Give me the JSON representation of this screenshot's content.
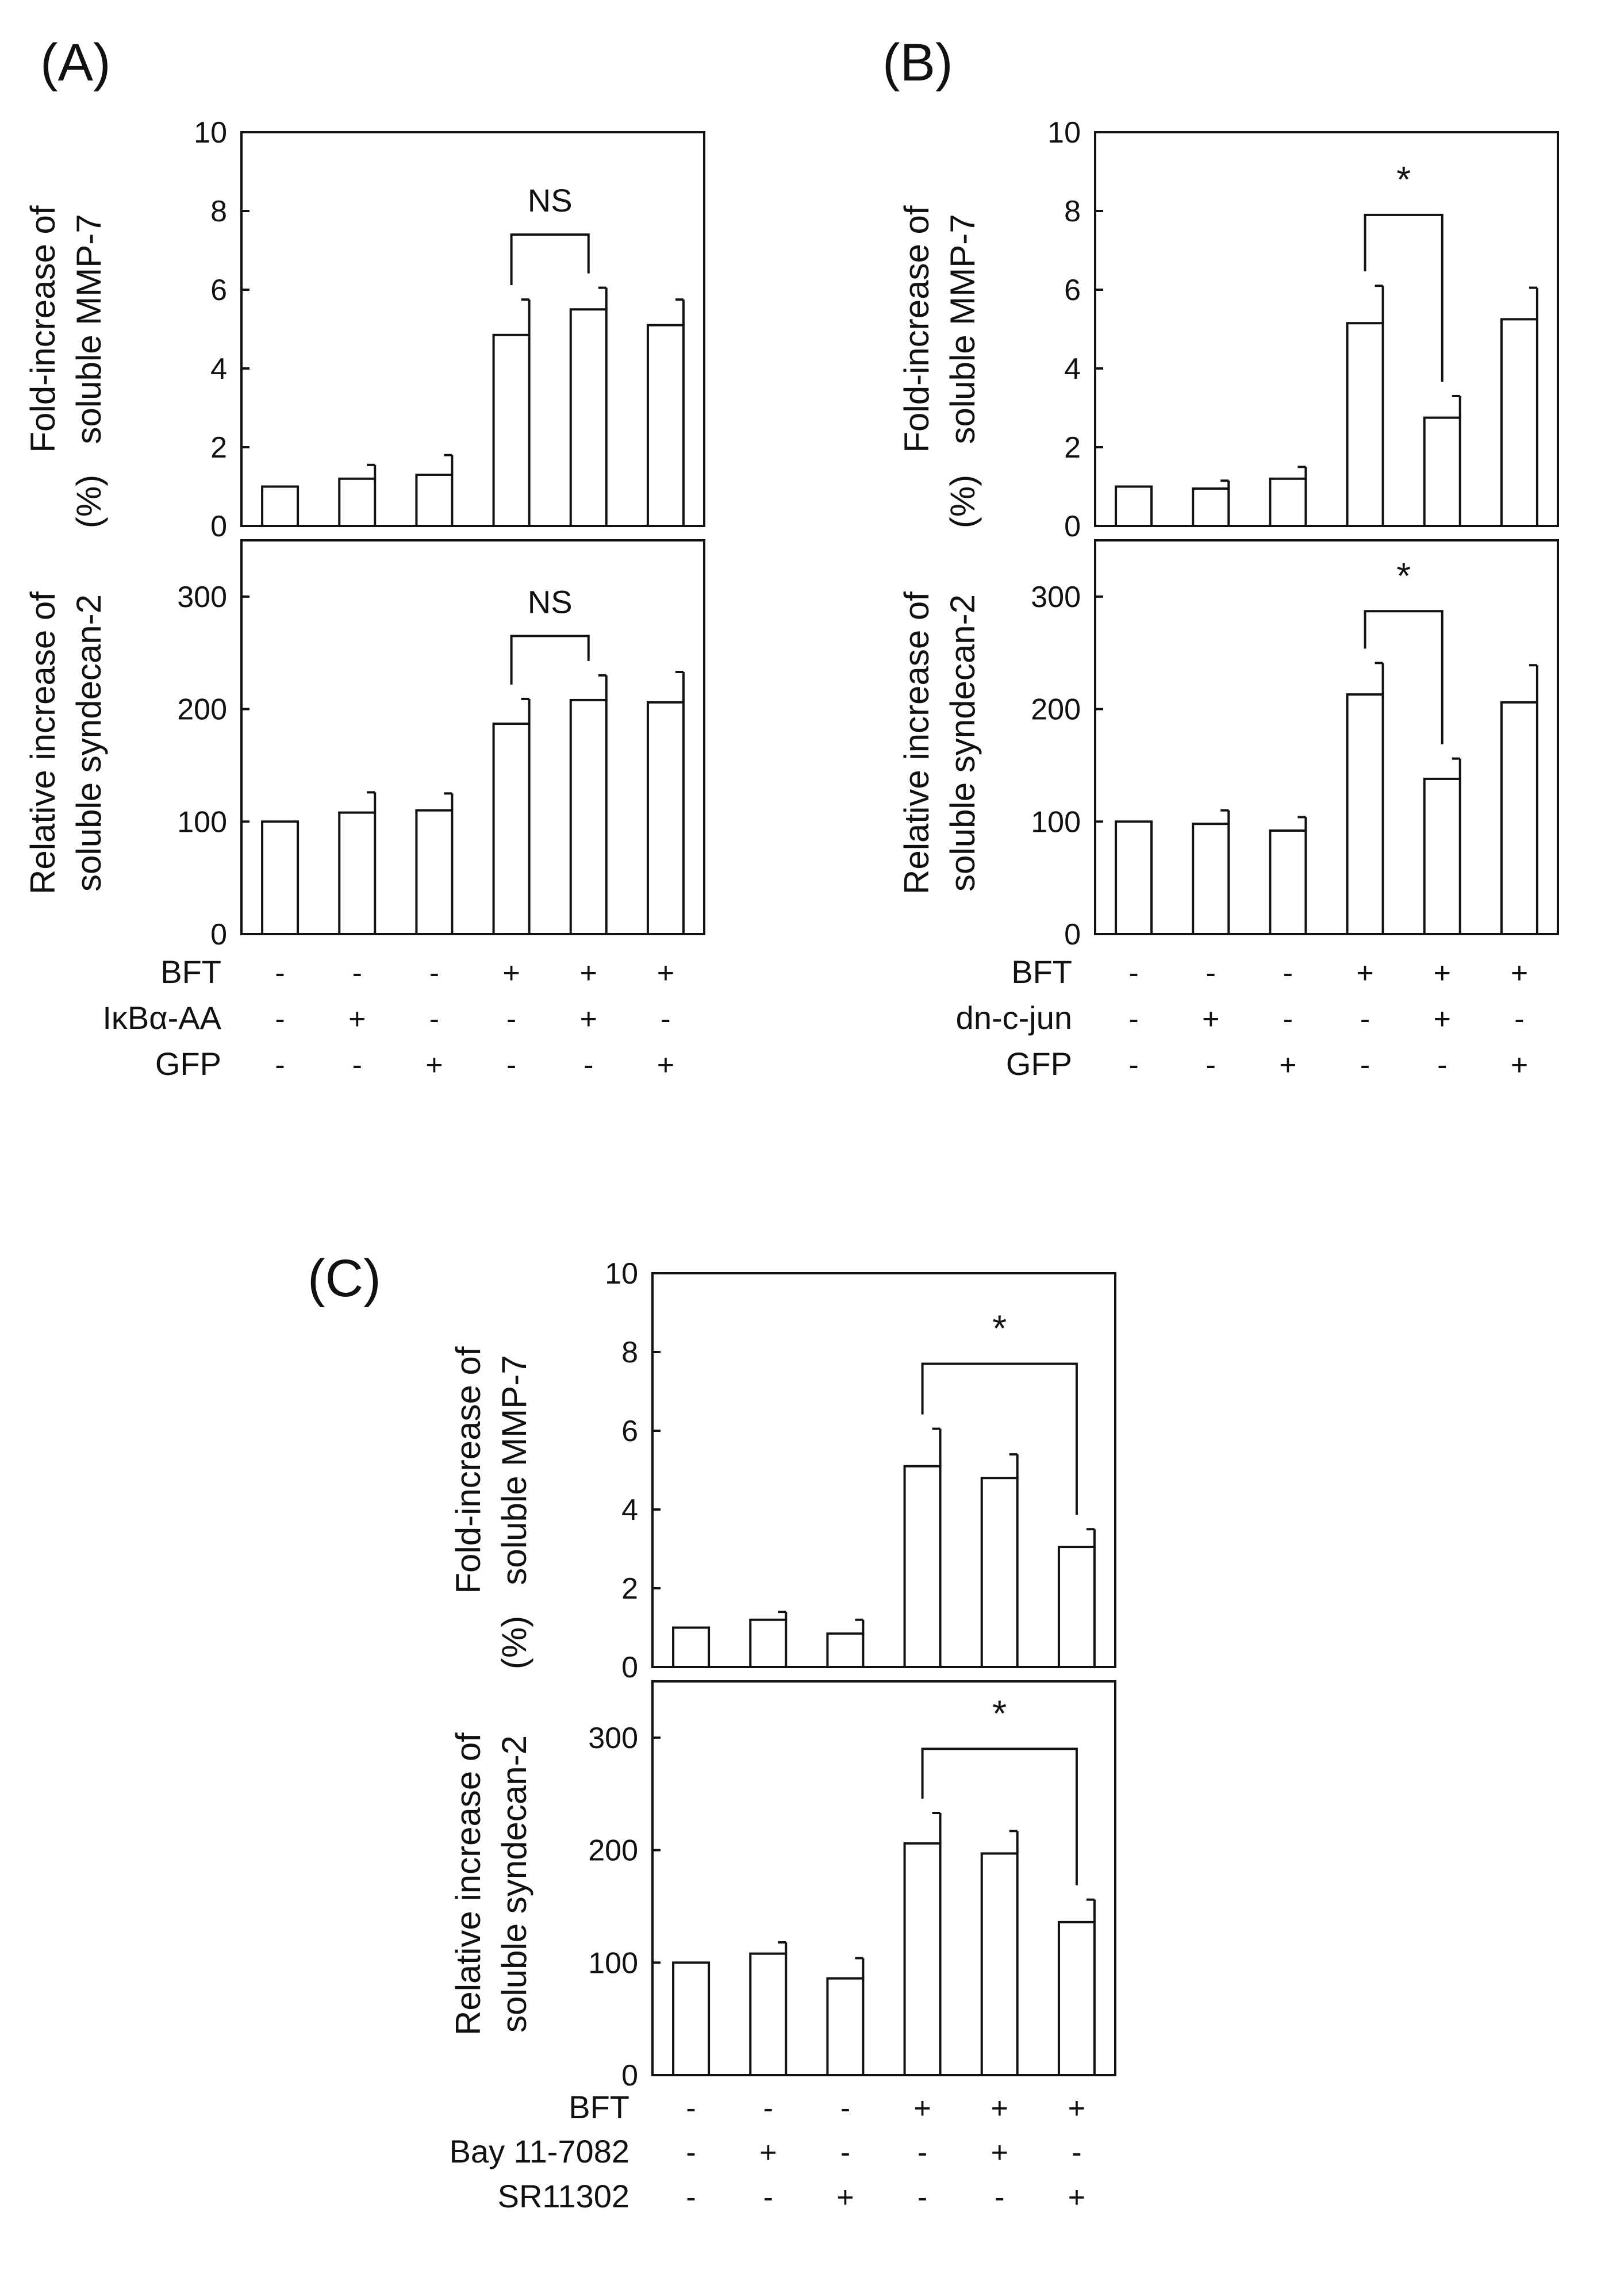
{
  "figure": {
    "panels": [
      {
        "letter": "(A)",
        "treatment_labels": [
          "BFT",
          "IκBα-AA",
          "GFP"
        ]
      },
      {
        "letter": "(B)",
        "treatment_labels": [
          "BFT",
          "dn-c-jun",
          "GFP"
        ]
      },
      {
        "letter": "(C)",
        "treatment_labels": [
          "BFT",
          "Bay 11-7082",
          "SR11302"
        ]
      }
    ]
  },
  "chart_data": [
    {
      "panel": "(A)",
      "type": "bar",
      "title": "Fold-increase of soluble MMP-7",
      "ylabel": [
        "Fold-increase of",
        "soluble MMP-7"
      ],
      "ylim": [
        0,
        10
      ],
      "yticks": [
        0,
        2,
        4,
        6,
        8,
        10
      ],
      "categories": [
        "1",
        "2",
        "3",
        "4",
        "5",
        "6"
      ],
      "values": [
        1.0,
        1.2,
        1.3,
        4.85,
        5.5,
        5.1
      ],
      "errors": [
        0,
        0.35,
        0.5,
        0.9,
        0.55,
        0.65
      ],
      "significance": {
        "from": 3,
        "to": 4,
        "label": "NS",
        "level": 7.4
      }
    },
    {
      "panel": "(A)",
      "type": "bar",
      "title": "Relative increase of soluble syndecan-2 (%)",
      "ylabel": [
        "Relative increase of",
        "soluble syndecan-2",
        "(%)"
      ],
      "ylim": [
        0,
        350
      ],
      "yticks": [
        0,
        100,
        200,
        300
      ],
      "categories": [
        "1",
        "2",
        "3",
        "4",
        "5",
        "6"
      ],
      "values": [
        100,
        108,
        110,
        187,
        208,
        206
      ],
      "errors": [
        0,
        18,
        15,
        22,
        22,
        27
      ],
      "significance": {
        "from": 3,
        "to": 4,
        "label": "NS",
        "level": 265
      }
    },
    {
      "panel": "(B)",
      "type": "bar",
      "title": "Fold-increase of soluble MMP-7",
      "ylabel": [
        "Fold-increase of",
        "soluble MMP-7"
      ],
      "ylim": [
        0,
        10
      ],
      "yticks": [
        0,
        2,
        4,
        6,
        8,
        10
      ],
      "categories": [
        "1",
        "2",
        "3",
        "4",
        "5",
        "6"
      ],
      "values": [
        1.0,
        0.95,
        1.2,
        5.15,
        2.75,
        5.25
      ],
      "errors": [
        0,
        0.2,
        0.3,
        0.95,
        0.55,
        0.8
      ],
      "significance": {
        "from": 3,
        "to": 4,
        "label": "*",
        "level": 7.9
      }
    },
    {
      "panel": "(B)",
      "type": "bar",
      "title": "Relative increase of soluble syndecan-2 (%)",
      "ylabel": [
        "Relative increase of",
        "soluble syndecan-2",
        "(%)"
      ],
      "ylim": [
        0,
        350
      ],
      "yticks": [
        0,
        100,
        200,
        300
      ],
      "categories": [
        "1",
        "2",
        "3",
        "4",
        "5",
        "6"
      ],
      "values": [
        100,
        98,
        92,
        213,
        138,
        206
      ],
      "errors": [
        0,
        12,
        12,
        28,
        18,
        33
      ],
      "significance": {
        "from": 3,
        "to": 4,
        "label": "*",
        "level": 287
      }
    },
    {
      "panel": "(C)",
      "type": "bar",
      "title": "Fold-increase of soluble MMP-7",
      "ylabel": [
        "Fold-increase of",
        "soluble MMP-7"
      ],
      "ylim": [
        0,
        10
      ],
      "yticks": [
        0,
        2,
        4,
        6,
        8,
        10
      ],
      "categories": [
        "1",
        "2",
        "3",
        "4",
        "5",
        "6"
      ],
      "values": [
        1.0,
        1.2,
        0.85,
        5.1,
        4.8,
        3.05
      ],
      "errors": [
        0,
        0.2,
        0.35,
        0.95,
        0.6,
        0.45
      ],
      "significance": {
        "from": 3,
        "to": 5,
        "label": "*",
        "level": 7.7
      }
    },
    {
      "panel": "(C)",
      "type": "bar",
      "title": "Relative increase of soluble syndecan-2 (%)",
      "ylabel": [
        "Relative increase of",
        "soluble syndecan-2",
        "(%)"
      ],
      "ylim": [
        0,
        350
      ],
      "yticks": [
        0,
        100,
        200,
        300
      ],
      "categories": [
        "1",
        "2",
        "3",
        "4",
        "5",
        "6"
      ],
      "values": [
        100,
        108,
        86,
        206,
        197,
        136
      ],
      "errors": [
        0,
        10,
        18,
        27,
        20,
        20
      ],
      "significance": {
        "from": 3,
        "to": 5,
        "label": "*",
        "level": 290
      }
    }
  ],
  "treatments": [
    {
      "panel": "(A)",
      "rows": [
        [
          "-",
          "-",
          "-",
          "+",
          "+",
          "+"
        ],
        [
          "-",
          "+",
          "-",
          "-",
          "+",
          "-"
        ],
        [
          "-",
          "-",
          "+",
          "-",
          "-",
          "+"
        ]
      ]
    },
    {
      "panel": "(B)",
      "rows": [
        [
          "-",
          "-",
          "-",
          "+",
          "+",
          "+"
        ],
        [
          "-",
          "+",
          "-",
          "-",
          "+",
          "-"
        ],
        [
          "-",
          "-",
          "+",
          "-",
          "-",
          "+"
        ]
      ]
    },
    {
      "panel": "(C)",
      "rows": [
        [
          "-",
          "-",
          "-",
          "+",
          "+",
          "+"
        ],
        [
          "-",
          "+",
          "-",
          "-",
          "+",
          "-"
        ],
        [
          "-",
          "-",
          "+",
          "-",
          "-",
          "+"
        ]
      ]
    }
  ]
}
